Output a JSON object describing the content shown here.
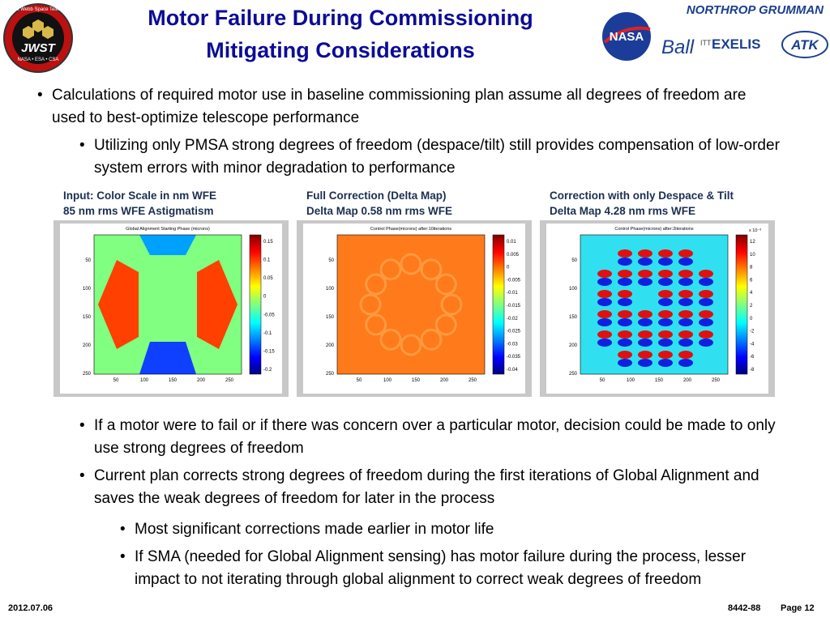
{
  "header": {
    "title_lines": [
      "Motor Failure During Commissioning",
      "Mitigating Considerations"
    ],
    "jwst_logo": {
      "ring_text": "James Webb Space Telescope",
      "name": "JWST",
      "partners": "NASA • ESA • CSA"
    },
    "partner_logos": [
      "NORTHROP GRUMMAN",
      "NASA",
      "Ball",
      "ITT",
      "EXELIS",
      "ATK"
    ]
  },
  "bullets_top": [
    {
      "level": 1,
      "text": "Calculations of required motor use in baseline commissioning plan assume all degrees of freedom are used to best-optimize telescope performance"
    },
    {
      "level": 2,
      "text": "Utilizing only PMSA strong degrees of freedom (despace/tilt) still provides compensation of low-order system errors with minor degradation to performance"
    }
  ],
  "panels": [
    {
      "caption": [
        "Input: Color Scale in nm WFE",
        "85 nm rms WFE Astigmatism"
      ],
      "plot_title": "Global Alignment Starting Phase (microns)",
      "yticks": [
        "50",
        "100",
        "150",
        "200",
        "250"
      ],
      "xticks": [
        "50",
        "100",
        "150",
        "200",
        "250"
      ],
      "colorbar_ticks": [
        "0.15",
        "0.1",
        "0.05",
        "0",
        "-0.05",
        "-0.1",
        "-0.15",
        "-0.2"
      ]
    },
    {
      "caption": [
        "Full Correction (Delta Map)",
        "Delta Map 0.58 nm rms WFE"
      ],
      "plot_title": "Control Phase(microns) after:10iterations",
      "yticks": [
        "50",
        "100",
        "150",
        "200",
        "250"
      ],
      "xticks": [
        "50",
        "100",
        "150",
        "200",
        "250"
      ],
      "colorbar_ticks": [
        "0.01",
        "0.005",
        "0",
        "-0.005",
        "-0.01",
        "-0.015",
        "-0.02",
        "-0.025",
        "-0.03",
        "-0.035",
        "-0.04"
      ]
    },
    {
      "caption": [
        "Correction with only Despace & Tilt",
        "Delta Map 4.28 nm rms WFE"
      ],
      "plot_title": "Control Phase(microns) after:2iterations",
      "yticks": [
        "50",
        "100",
        "150",
        "200",
        "250"
      ],
      "xticks": [
        "50",
        "100",
        "150",
        "200",
        "250"
      ],
      "colorbar_scale": "x 10⁻³",
      "colorbar_ticks": [
        "12",
        "10",
        "8",
        "6",
        "4",
        "2",
        "0",
        "-2",
        "-4",
        "-6",
        "-8"
      ]
    }
  ],
  "bullets_bottom": [
    {
      "level": 2,
      "text": "If a motor were to fail or if there was concern over a particular motor, decision could be made to only use strong degrees of freedom"
    },
    {
      "level": 2,
      "text": "Current plan corrects strong degrees of freedom during the first iterations of Global Alignment and saves the weak degrees of freedom for later in the process"
    },
    {
      "level": 3,
      "text": "Most significant corrections made earlier in motor life"
    },
    {
      "level": 3,
      "text": "If SMA (needed for Global Alignment sensing) has motor failure during the process, lesser impact to not iterating through global alignment to correct weak degrees of freedom"
    }
  ],
  "footer": {
    "date": "2012.07.06",
    "doc_number": "8442-88",
    "page": "Page 12"
  }
}
